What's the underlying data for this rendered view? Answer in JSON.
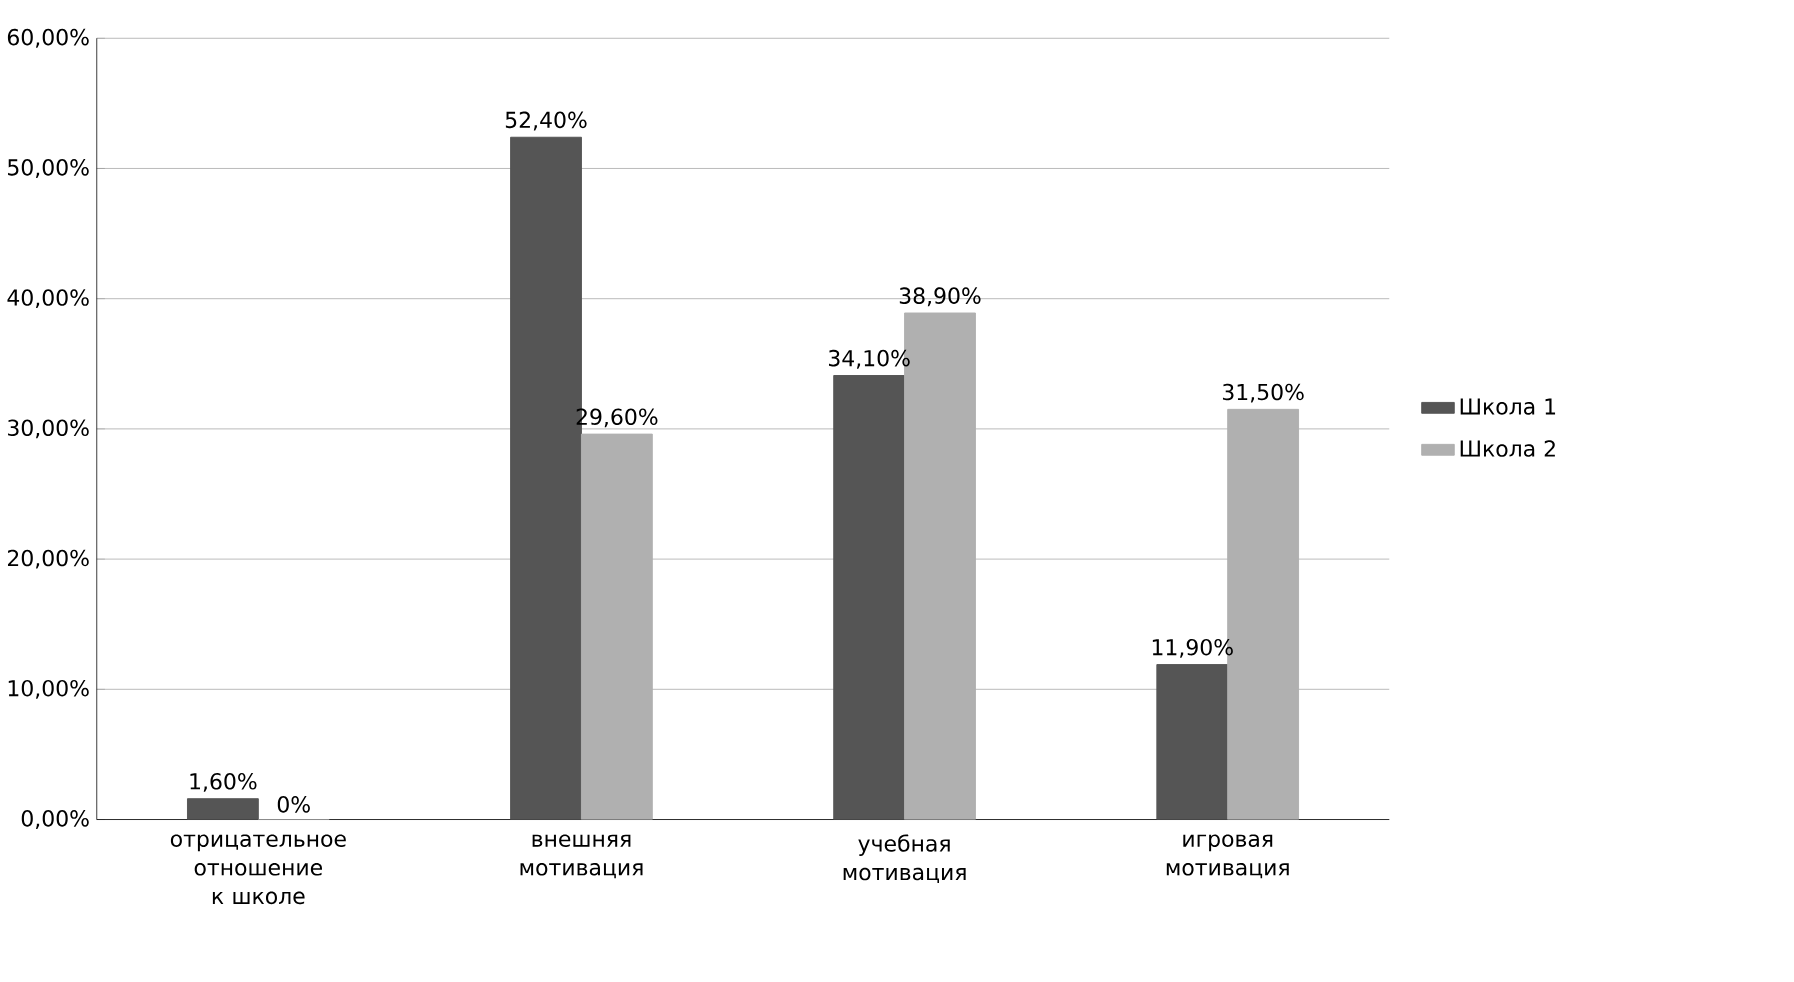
{
  "chart_data": {
    "type": "bar",
    "categories": [
      "отрицательное отношение к школе",
      "внешняя мотивация",
      "учебная мотивация",
      "игровая мотивация"
    ],
    "series": [
      {
        "name": "Школа 1",
        "color": "#555555",
        "values": [
          1.6,
          52.4,
          34.1,
          11.9
        ],
        "value_labels": [
          "1,60%",
          "52,40%",
          "34,10%",
          "11,90%"
        ]
      },
      {
        "name": "Школа 2",
        "color": "#b0b0b0",
        "values": [
          0,
          29.6,
          38.9,
          31.5
        ],
        "value_labels": [
          "0%",
          "29,60%",
          "38,90%",
          "31,50%"
        ]
      }
    ],
    "ylim": [
      0,
      60
    ],
    "yticks": [
      {
        "value": 0,
        "label": "0,00%"
      },
      {
        "value": 10,
        "label": "10,00%"
      },
      {
        "value": 20,
        "label": "20,00%"
      },
      {
        "value": 30,
        "label": "30,00%"
      },
      {
        "value": 40,
        "label": "40,00%"
      },
      {
        "value": 50,
        "label": "50,00%"
      },
      {
        "value": 60,
        "label": "60,00%"
      }
    ],
    "grid": "y",
    "legend": "right"
  }
}
